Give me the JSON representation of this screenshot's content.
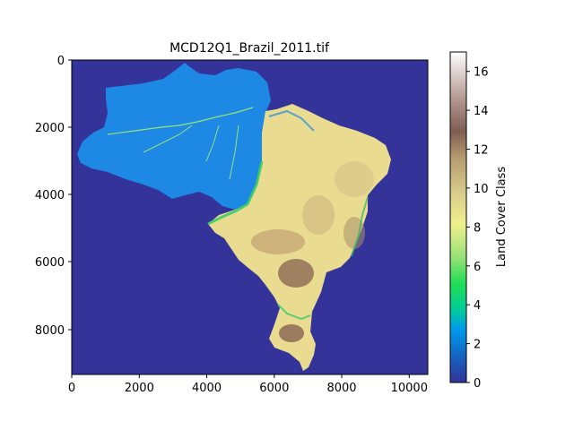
{
  "title": "MCD12Q1_Brazil_2011.tif",
  "colorbar": {
    "label": "Land Cover Class",
    "ticks": [
      "0",
      "2",
      "4",
      "6",
      "8",
      "10",
      "12",
      "14",
      "16"
    ],
    "range": [
      0,
      17
    ],
    "colormap": "terrain"
  },
  "axes": {
    "x_ticks": [
      "0",
      "2000",
      "4000",
      "6000",
      "8000",
      "10000"
    ],
    "y_ticks": [
      "0",
      "2000",
      "4000",
      "6000",
      "8000"
    ],
    "x_range": [
      0,
      10550
    ],
    "y_range": [
      9400,
      0
    ]
  },
  "map": {
    "subject": "Brazil land cover raster",
    "background_class_color": "#333399",
    "forest_class_color": "#1e88e5",
    "savanna_class_color": "#e9d98b",
    "cropland_class_color": "#b79b6b",
    "grassland_class_color": "#33cc66"
  }
}
